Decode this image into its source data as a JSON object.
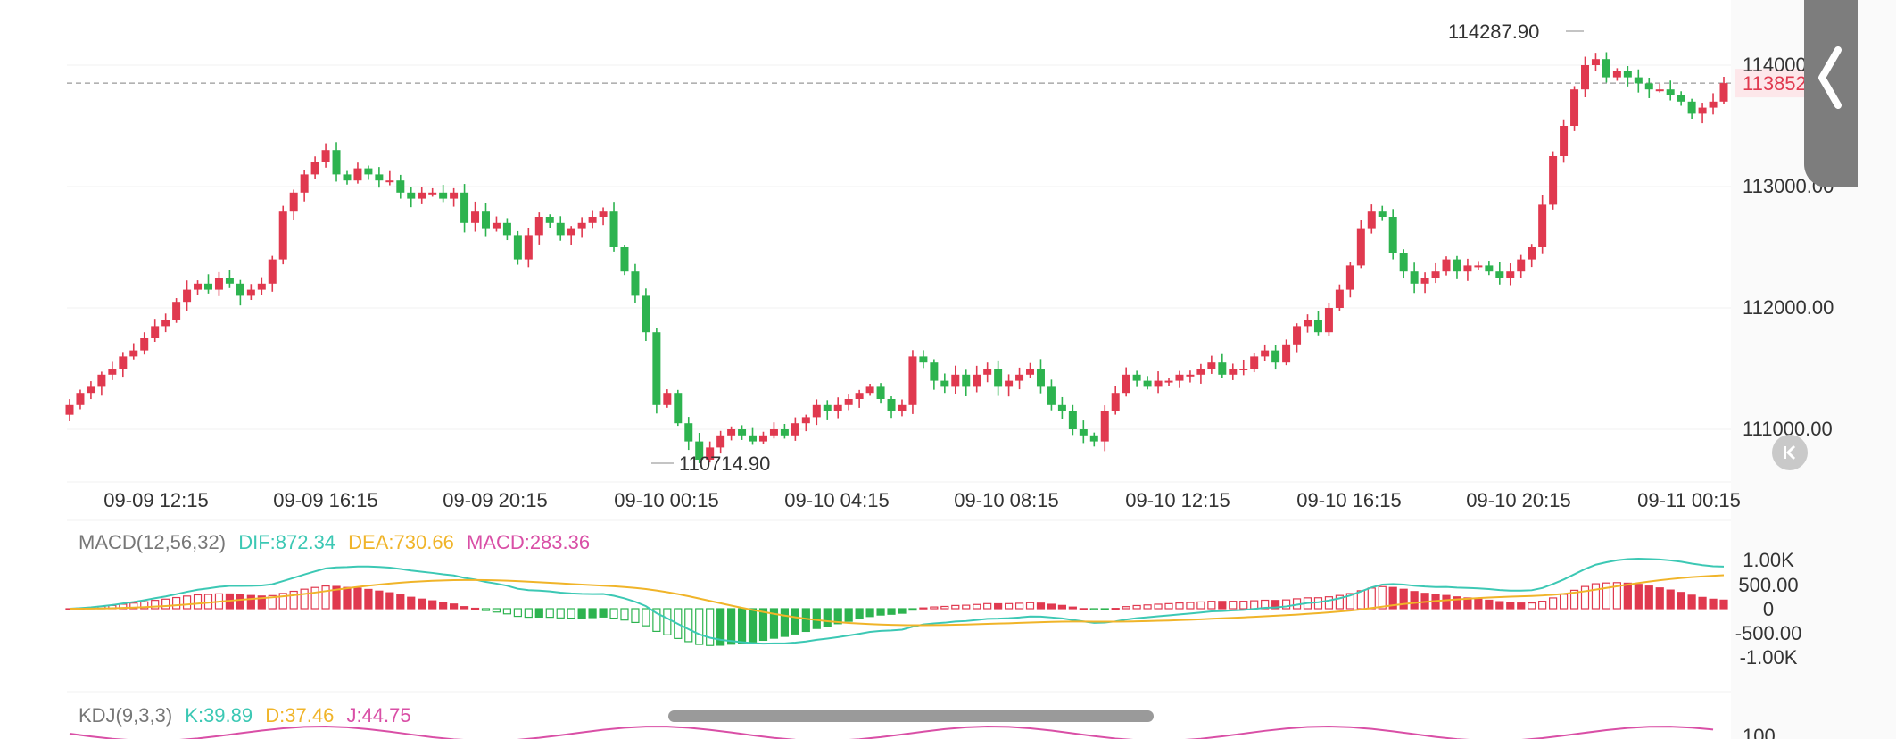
{
  "chart_data": {
    "type": "candlestick",
    "x_ticks": [
      "09-09 12:15",
      "09-09 16:15",
      "09-09 20:15",
      "09-10 00:15",
      "09-10 04:15",
      "09-10 08:15",
      "09-10 12:15",
      "09-10 16:15",
      "09-10 20:15",
      "09-11 00:15"
    ],
    "y_ticks": [
      "114000.00",
      "113000.00",
      "112000.00",
      "111000.00"
    ],
    "ylim": [
      110580,
      114300
    ],
    "last_price": "113852.10",
    "last_price_value": 113852.1,
    "max_label": "114287.90",
    "min_label": "110714.90",
    "candles_note": "approximate OHLC per 15-minute bar, estimated from gridlines",
    "closes": [
      111200,
      111300,
      111350,
      111450,
      111500,
      111600,
      111650,
      111750,
      111850,
      111900,
      112050,
      112150,
      112200,
      112150,
      112250,
      112200,
      112100,
      112150,
      112200,
      112400,
      112800,
      112950,
      113100,
      113200,
      113300,
      113100,
      113050,
      113150,
      113100,
      113050,
      113050,
      112950,
      112900,
      112950,
      112950,
      112900,
      112950,
      112700,
      112800,
      112650,
      112700,
      112600,
      112400,
      112600,
      112750,
      112700,
      112600,
      112650,
      112700,
      112750,
      112800,
      112500,
      112300,
      112100,
      111800,
      111200,
      111300,
      111050,
      110900,
      110750,
      110850,
      110950,
      111000,
      110950,
      110900,
      110950,
      111000,
      110950,
      111050,
      111100,
      111200,
      111150,
      111200,
      111250,
      111300,
      111350,
      111250,
      111150,
      111200,
      111600,
      111550,
      111400,
      111350,
      111450,
      111350,
      111450,
      111500,
      111350,
      111400,
      111450,
      111500,
      111350,
      111200,
      111150,
      111000,
      110950,
      110900,
      111150,
      111300,
      111450,
      111400,
      111350,
      111400,
      111400,
      111450,
      111450,
      111500,
      111550,
      111450,
      111500,
      111500,
      111600,
      111650,
      111550,
      111700,
      111850,
      111900,
      111800,
      112000,
      112150,
      112350,
      112650,
      112800,
      112750,
      112450,
      112300,
      112200,
      112250,
      112300,
      112400,
      112300,
      112350,
      112350,
      112300,
      112250,
      112300,
      112400,
      112500,
      112850,
      113250,
      113500,
      113800,
      114000,
      114050,
      113900,
      113950,
      113900,
      113850,
      113800,
      113800,
      113750,
      113700,
      113600,
      113650,
      113700,
      113852.1
    ],
    "macd": {
      "params": "MACD(12,56,32)",
      "dif_label": "DIF:872.34",
      "dea_label": "DEA:730.66",
      "macd_label": "MACD:283.36",
      "dif": 872.34,
      "dea": 730.66,
      "hist": 283.36,
      "y_ticks": [
        "1.00K",
        "500.00",
        "0",
        "-500.00",
        "-1.00K"
      ],
      "ylim": [
        -1000,
        1000
      ]
    },
    "kdj": {
      "params": "KDJ(9,3,3)",
      "k_label": "K:39.89",
      "d_label": "D:37.46",
      "j_label": "J:44.75",
      "y_tick": "100"
    },
    "colors": {
      "up": "#e0394f",
      "down": "#2db34f",
      "dif_line": "#3cc8b4",
      "dea_line": "#f0b429",
      "macd_label": "#d94fa6",
      "axis_text": "#333333",
      "grid": "#f0f0f0"
    }
  },
  "ui": {
    "side_panel_icon": "chevron-left-icon",
    "collapse_icon": "skip-back-icon"
  }
}
